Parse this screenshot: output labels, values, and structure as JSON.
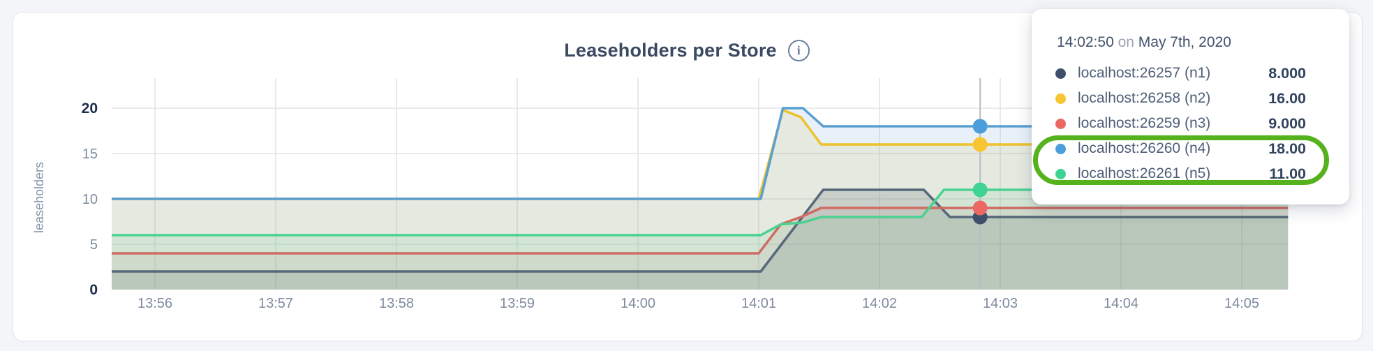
{
  "header": {
    "title": "Leaseholders per Store",
    "info_icon_glyph": "i"
  },
  "tooltip": {
    "time": "14:02:50",
    "conj": "on",
    "date": "May 7th, 2020"
  },
  "annotation": {
    "shape": "green-ellipse-around-n4-n5",
    "color": "#55b21c"
  },
  "chart_data": {
    "type": "area",
    "title": "Leaseholders per Store",
    "xlabel": "",
    "ylabel": "leaseholders",
    "ylim": [
      0,
      20
    ],
    "yticks": [
      0,
      5,
      10,
      15,
      20
    ],
    "yticks_bold": [
      0,
      20
    ],
    "grid": true,
    "x_unit": "seconds after 13:56:00",
    "x_domain_s": [
      -21.5,
      563
    ],
    "xticks": [
      {
        "label": "13:56",
        "s": 0
      },
      {
        "label": "13:57",
        "s": 60
      },
      {
        "label": "13:58",
        "s": 120
      },
      {
        "label": "13:59",
        "s": 180
      },
      {
        "label": "14:00",
        "s": 240
      },
      {
        "label": "14:01",
        "s": 300
      },
      {
        "label": "14:02",
        "s": 360
      },
      {
        "label": "14:03",
        "s": 420
      },
      {
        "label": "14:04",
        "s": 480
      },
      {
        "label": "14:05",
        "s": 540
      }
    ],
    "series": [
      {
        "name": "localhost:26257 (n1)",
        "node": "n1",
        "line_color": "#566879",
        "dot_color": "#3e4f6b",
        "fill_opacity": 0.22,
        "points": [
          [
            -21.5,
            2
          ],
          [
            301,
            2
          ],
          [
            332,
            11
          ],
          [
            382,
            11
          ],
          [
            395,
            8
          ],
          [
            563,
            8
          ]
        ],
        "hover_value": 8,
        "hover_label": "8.000"
      },
      {
        "name": "localhost:26258 (n2)",
        "node": "n2",
        "line_color": "#edc22e",
        "dot_color": "#f6c52f",
        "fill_opacity": 0.14,
        "points": [
          [
            -21.5,
            10
          ],
          [
            300,
            10
          ],
          [
            312,
            19.8
          ],
          [
            321,
            19.0
          ],
          [
            331,
            16
          ],
          [
            563,
            16
          ]
        ],
        "hover_value": 16,
        "hover_label": "16.00"
      },
      {
        "name": "localhost:26259 (n3)",
        "node": "n3",
        "line_color": "#cf6b62",
        "dot_color": "#ec6862",
        "fill_opacity": 0.11,
        "points": [
          [
            -21.5,
            4
          ],
          [
            300,
            4
          ],
          [
            311,
            7.2
          ],
          [
            321,
            8
          ],
          [
            331,
            9
          ],
          [
            563,
            9
          ]
        ],
        "hover_value": 9,
        "hover_label": "9.000"
      },
      {
        "name": "localhost:26260 (n4)",
        "node": "n4",
        "line_color": "#5a9fd2",
        "dot_color": "#4b9ed9",
        "fill_opacity": 0.14,
        "points": [
          [
            -21.5,
            10
          ],
          [
            301,
            10
          ],
          [
            312,
            20
          ],
          [
            322,
            20
          ],
          [
            332,
            18
          ],
          [
            563,
            18
          ]
        ],
        "hover_value": 18,
        "hover_label": "18.00"
      },
      {
        "name": "localhost:26261 (n5)",
        "node": "n5",
        "line_color": "#4bd190",
        "dot_color": "#3ed393",
        "fill_opacity": 0.11,
        "points": [
          [
            -21.5,
            6
          ],
          [
            301,
            6
          ],
          [
            311,
            7.2
          ],
          [
            322,
            7.4
          ],
          [
            331,
            8
          ],
          [
            381,
            8
          ],
          [
            392,
            11
          ],
          [
            563,
            11
          ]
        ],
        "hover_value": 11,
        "hover_label": "11.00"
      }
    ],
    "hover": {
      "s": 410,
      "time": "14:02:50",
      "date": "May 7th, 2020"
    },
    "legend_position": "tooltip-top-right"
  }
}
